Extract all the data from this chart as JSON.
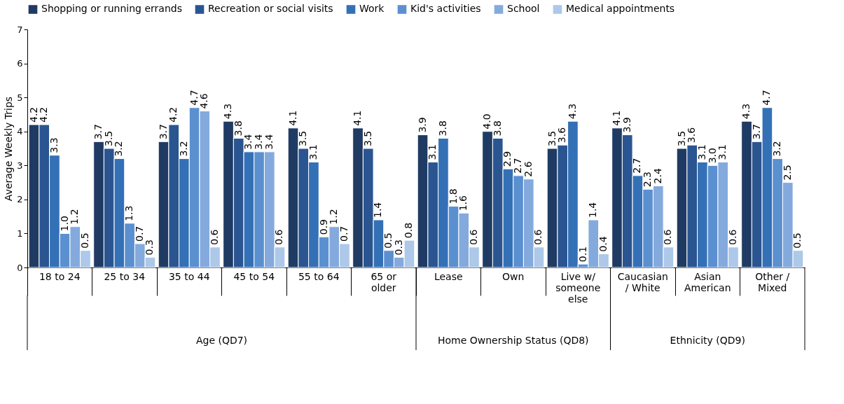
{
  "chart_data": {
    "type": "bar",
    "ylabel": "Average Weekly Trips",
    "categories": [
      "18 to 24",
      "25 to 34",
      "35 to 44",
      "45 to 54",
      "55 to 64",
      "65 or\nolder",
      "Lease",
      "Own",
      "Live w/\nsomeone\nelse",
      "Caucasian\n/ White",
      "Asian\nAmerican",
      "Other /\nMixed"
    ],
    "series": [
      {
        "name": "Shopping or running errands",
        "color": "#1f3b63",
        "values": [
          4.2,
          3.7,
          3.7,
          4.3,
          4.1,
          4.1,
          3.9,
          4.0,
          3.5,
          4.1,
          3.5,
          4.3
        ]
      },
      {
        "name": "Recreation or social visits",
        "color": "#2a5591",
        "values": [
          4.2,
          3.5,
          4.2,
          3.8,
          3.5,
          3.5,
          3.1,
          3.8,
          3.6,
          3.9,
          3.6,
          3.7
        ]
      },
      {
        "name": "Work",
        "color": "#3470b6",
        "values": [
          3.3,
          3.2,
          3.2,
          3.4,
          3.1,
          1.4,
          3.8,
          2.9,
          4.3,
          2.7,
          3.1,
          4.7
        ]
      },
      {
        "name": "Kid's activities",
        "color": "#5b90d0",
        "values": [
          1.0,
          1.3,
          4.7,
          3.4,
          0.9,
          0.5,
          1.8,
          2.7,
          0.1,
          2.3,
          3.0,
          3.2
        ]
      },
      {
        "name": "School",
        "color": "#84aadd",
        "values": [
          1.2,
          0.7,
          4.6,
          3.4,
          1.2,
          0.3,
          1.6,
          2.6,
          1.4,
          2.4,
          3.1,
          2.5
        ]
      },
      {
        "name": "Medical appointments",
        "color": "#adc8e8",
        "values": [
          0.5,
          0.3,
          0.6,
          0.6,
          0.7,
          0.8,
          0.6,
          0.6,
          0.4,
          0.6,
          0.6,
          0.5
        ]
      }
    ],
    "ylim": [
      0,
      7
    ],
    "yticks": [
      0,
      1,
      2,
      3,
      4,
      5,
      6,
      7
    ],
    "grid": false,
    "legend": "top",
    "value_labels": [
      [
        "4.2",
        "3.7",
        "3.7",
        "4.3",
        "4.1",
        "4.1",
        "3.9",
        "4.0",
        "3.5",
        "4.1",
        "3.5",
        "4.3"
      ],
      [
        "4.2",
        "3.5",
        "4.2",
        "3.8",
        "3.5",
        "3.5",
        "3.1",
        "3.8",
        "3.6",
        "3.9",
        "3.6",
        "3.7"
      ],
      [
        "3.3",
        "3.2",
        "3.2",
        "3.4",
        "3.1",
        "1.4",
        "3.8",
        "2.9",
        "4.3",
        "2.7",
        "3.1",
        "4.7"
      ],
      [
        "1.0",
        "1.3",
        "4.7",
        "3.4",
        "0.9",
        "0.5",
        "1.8",
        "2.7",
        "0.1",
        "2.3",
        "3.0",
        "3.2"
      ],
      [
        "1.2",
        "0.7",
        "4.6",
        "3.4",
        "1.2",
        "0.3",
        "1.6",
        "2.6",
        "1.4",
        "2.4",
        "3.1",
        "2.5"
      ],
      [
        "0.5",
        "0.3",
        "0.6",
        "0.6",
        "0.7",
        "0.8",
        "0.6",
        "0.6",
        "0.4",
        "0.6",
        "0.6",
        "0.5"
      ]
    ],
    "annotations": [
      "Age (QD7)",
      "Home Ownership Status (QD8)",
      "Ethnicity (QD9)"
    ]
  }
}
